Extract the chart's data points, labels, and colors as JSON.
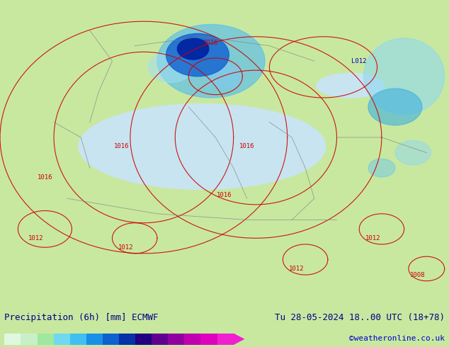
{
  "title_left": "Precipitation (6h) [mm] ECMWF",
  "title_right": "Tu 28-05-2024 18..00 UTC (18+78)",
  "credit": "©weatheronline.co.uk",
  "colorbar_levels": [
    0.1,
    0.5,
    1,
    2,
    5,
    10,
    15,
    20,
    25,
    30,
    35,
    40,
    45,
    50
  ],
  "colorbar_colors": [
    "#e0f8e0",
    "#c8f0c8",
    "#a0e8a0",
    "#70d8f0",
    "#40c0f0",
    "#1890e8",
    "#1060d0",
    "#0830a8",
    "#200080",
    "#600090",
    "#9000a0",
    "#c000b0",
    "#e000c0",
    "#f020d0"
  ],
  "bg_color": "#c8e8a0",
  "map_bg": "#c8e8a0",
  "bottom_bar_color": "#e8e8e8",
  "title_color": "#000080",
  "credit_color": "#0000cc",
  "label_color": "#000000",
  "figsize": [
    6.34,
    4.9
  ],
  "dpi": 100
}
